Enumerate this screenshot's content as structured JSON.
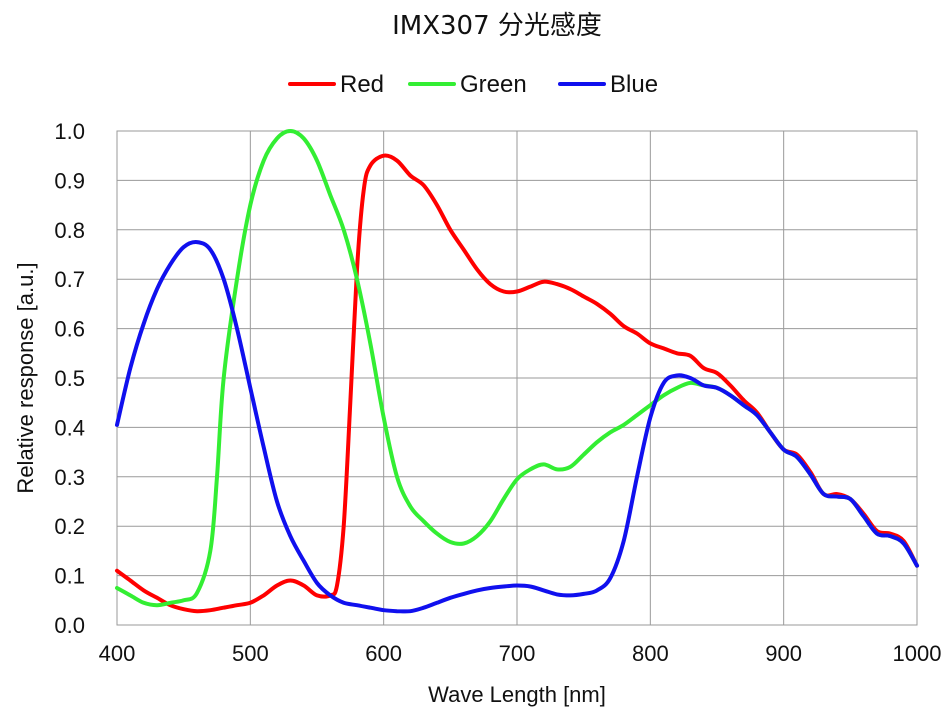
{
  "chart_data": {
    "type": "line",
    "title": "IMX307 分光感度",
    "xlabel": "Wave Length [nm]",
    "ylabel": "Relative response [a.u.]",
    "xlim": [
      400,
      1000
    ],
    "ylim": [
      0,
      1
    ],
    "x_ticks": [
      400,
      500,
      600,
      700,
      800,
      900,
      1000
    ],
    "y_ticks": [
      "0.0",
      "0.1",
      "0.2",
      "0.3",
      "0.4",
      "0.5",
      "0.6",
      "0.7",
      "0.8",
      "0.9",
      "1.0"
    ],
    "grid": true,
    "legend_position": "top-center",
    "series": [
      {
        "name": "Red",
        "color": "#ff0000",
        "points": [
          [
            400,
            0.11
          ],
          [
            410,
            0.09
          ],
          [
            420,
            0.07
          ],
          [
            430,
            0.055
          ],
          [
            440,
            0.04
          ],
          [
            450,
            0.032
          ],
          [
            460,
            0.028
          ],
          [
            470,
            0.03
          ],
          [
            480,
            0.035
          ],
          [
            490,
            0.04
          ],
          [
            500,
            0.045
          ],
          [
            510,
            0.06
          ],
          [
            520,
            0.08
          ],
          [
            530,
            0.09
          ],
          [
            540,
            0.08
          ],
          [
            550,
            0.06
          ],
          [
            560,
            0.06
          ],
          [
            565,
            0.08
          ],
          [
            570,
            0.2
          ],
          [
            575,
            0.45
          ],
          [
            580,
            0.72
          ],
          [
            585,
            0.88
          ],
          [
            590,
            0.93
          ],
          [
            600,
            0.95
          ],
          [
            610,
            0.94
          ],
          [
            620,
            0.91
          ],
          [
            630,
            0.89
          ],
          [
            640,
            0.85
          ],
          [
            650,
            0.8
          ],
          [
            660,
            0.76
          ],
          [
            670,
            0.72
          ],
          [
            680,
            0.69
          ],
          [
            690,
            0.675
          ],
          [
            700,
            0.675
          ],
          [
            710,
            0.685
          ],
          [
            720,
            0.695
          ],
          [
            730,
            0.69
          ],
          [
            740,
            0.68
          ],
          [
            750,
            0.665
          ],
          [
            760,
            0.65
          ],
          [
            770,
            0.63
          ],
          [
            780,
            0.605
          ],
          [
            790,
            0.59
          ],
          [
            800,
            0.57
          ],
          [
            810,
            0.56
          ],
          [
            820,
            0.55
          ],
          [
            830,
            0.545
          ],
          [
            840,
            0.52
          ],
          [
            850,
            0.51
          ],
          [
            860,
            0.485
          ],
          [
            870,
            0.455
          ],
          [
            880,
            0.43
          ],
          [
            890,
            0.39
          ],
          [
            900,
            0.355
          ],
          [
            910,
            0.345
          ],
          [
            920,
            0.31
          ],
          [
            930,
            0.265
          ],
          [
            940,
            0.265
          ],
          [
            950,
            0.255
          ],
          [
            960,
            0.225
          ],
          [
            970,
            0.19
          ],
          [
            980,
            0.185
          ],
          [
            990,
            0.17
          ],
          [
            1000,
            0.12
          ]
        ]
      },
      {
        "name": "Green",
        "color": "#33ee33",
        "points": [
          [
            400,
            0.075
          ],
          [
            410,
            0.06
          ],
          [
            420,
            0.045
          ],
          [
            430,
            0.04
          ],
          [
            440,
            0.045
          ],
          [
            450,
            0.05
          ],
          [
            460,
            0.065
          ],
          [
            470,
            0.15
          ],
          [
            475,
            0.3
          ],
          [
            480,
            0.5
          ],
          [
            490,
            0.7
          ],
          [
            500,
            0.85
          ],
          [
            510,
            0.94
          ],
          [
            520,
            0.985
          ],
          [
            530,
            1.0
          ],
          [
            540,
            0.985
          ],
          [
            550,
            0.94
          ],
          [
            560,
            0.87
          ],
          [
            570,
            0.8
          ],
          [
            580,
            0.7
          ],
          [
            590,
            0.57
          ],
          [
            600,
            0.42
          ],
          [
            610,
            0.3
          ],
          [
            620,
            0.24
          ],
          [
            630,
            0.21
          ],
          [
            640,
            0.185
          ],
          [
            650,
            0.168
          ],
          [
            660,
            0.165
          ],
          [
            670,
            0.18
          ],
          [
            680,
            0.21
          ],
          [
            690,
            0.255
          ],
          [
            700,
            0.295
          ],
          [
            710,
            0.315
          ],
          [
            720,
            0.325
          ],
          [
            730,
            0.315
          ],
          [
            740,
            0.32
          ],
          [
            750,
            0.345
          ],
          [
            760,
            0.37
          ],
          [
            770,
            0.39
          ],
          [
            780,
            0.405
          ],
          [
            790,
            0.425
          ],
          [
            800,
            0.445
          ],
          [
            810,
            0.465
          ],
          [
            820,
            0.48
          ],
          [
            830,
            0.49
          ],
          [
            840,
            0.485
          ],
          [
            850,
            0.48
          ],
          [
            860,
            0.465
          ],
          [
            870,
            0.445
          ],
          [
            880,
            0.425
          ],
          [
            890,
            0.39
          ],
          [
            900,
            0.355
          ],
          [
            910,
            0.34
          ],
          [
            920,
            0.305
          ],
          [
            930,
            0.265
          ],
          [
            940,
            0.26
          ],
          [
            950,
            0.255
          ],
          [
            960,
            0.22
          ],
          [
            970,
            0.185
          ],
          [
            980,
            0.18
          ],
          [
            990,
            0.165
          ],
          [
            1000,
            0.12
          ]
        ]
      },
      {
        "name": "Blue",
        "color": "#1010ee",
        "points": [
          [
            400,
            0.405
          ],
          [
            410,
            0.52
          ],
          [
            420,
            0.61
          ],
          [
            430,
            0.68
          ],
          [
            440,
            0.73
          ],
          [
            450,
            0.765
          ],
          [
            460,
            0.775
          ],
          [
            470,
            0.76
          ],
          [
            480,
            0.7
          ],
          [
            490,
            0.6
          ],
          [
            500,
            0.48
          ],
          [
            510,
            0.36
          ],
          [
            520,
            0.25
          ],
          [
            530,
            0.18
          ],
          [
            540,
            0.13
          ],
          [
            550,
            0.085
          ],
          [
            560,
            0.06
          ],
          [
            570,
            0.045
          ],
          [
            580,
            0.04
          ],
          [
            590,
            0.035
          ],
          [
            600,
            0.03
          ],
          [
            610,
            0.028
          ],
          [
            620,
            0.028
          ],
          [
            630,
            0.035
          ],
          [
            640,
            0.045
          ],
          [
            650,
            0.055
          ],
          [
            660,
            0.063
          ],
          [
            670,
            0.07
          ],
          [
            680,
            0.075
          ],
          [
            690,
            0.078
          ],
          [
            700,
            0.08
          ],
          [
            710,
            0.078
          ],
          [
            720,
            0.07
          ],
          [
            730,
            0.062
          ],
          [
            740,
            0.06
          ],
          [
            750,
            0.063
          ],
          [
            760,
            0.07
          ],
          [
            770,
            0.095
          ],
          [
            780,
            0.17
          ],
          [
            790,
            0.3
          ],
          [
            800,
            0.42
          ],
          [
            810,
            0.49
          ],
          [
            820,
            0.505
          ],
          [
            830,
            0.5
          ],
          [
            840,
            0.485
          ],
          [
            850,
            0.48
          ],
          [
            860,
            0.465
          ],
          [
            870,
            0.445
          ],
          [
            880,
            0.425
          ],
          [
            890,
            0.39
          ],
          [
            900,
            0.355
          ],
          [
            910,
            0.34
          ],
          [
            920,
            0.305
          ],
          [
            930,
            0.265
          ],
          [
            940,
            0.26
          ],
          [
            950,
            0.255
          ],
          [
            960,
            0.22
          ],
          [
            970,
            0.185
          ],
          [
            980,
            0.18
          ],
          [
            990,
            0.165
          ],
          [
            1000,
            0.12
          ]
        ]
      }
    ]
  }
}
